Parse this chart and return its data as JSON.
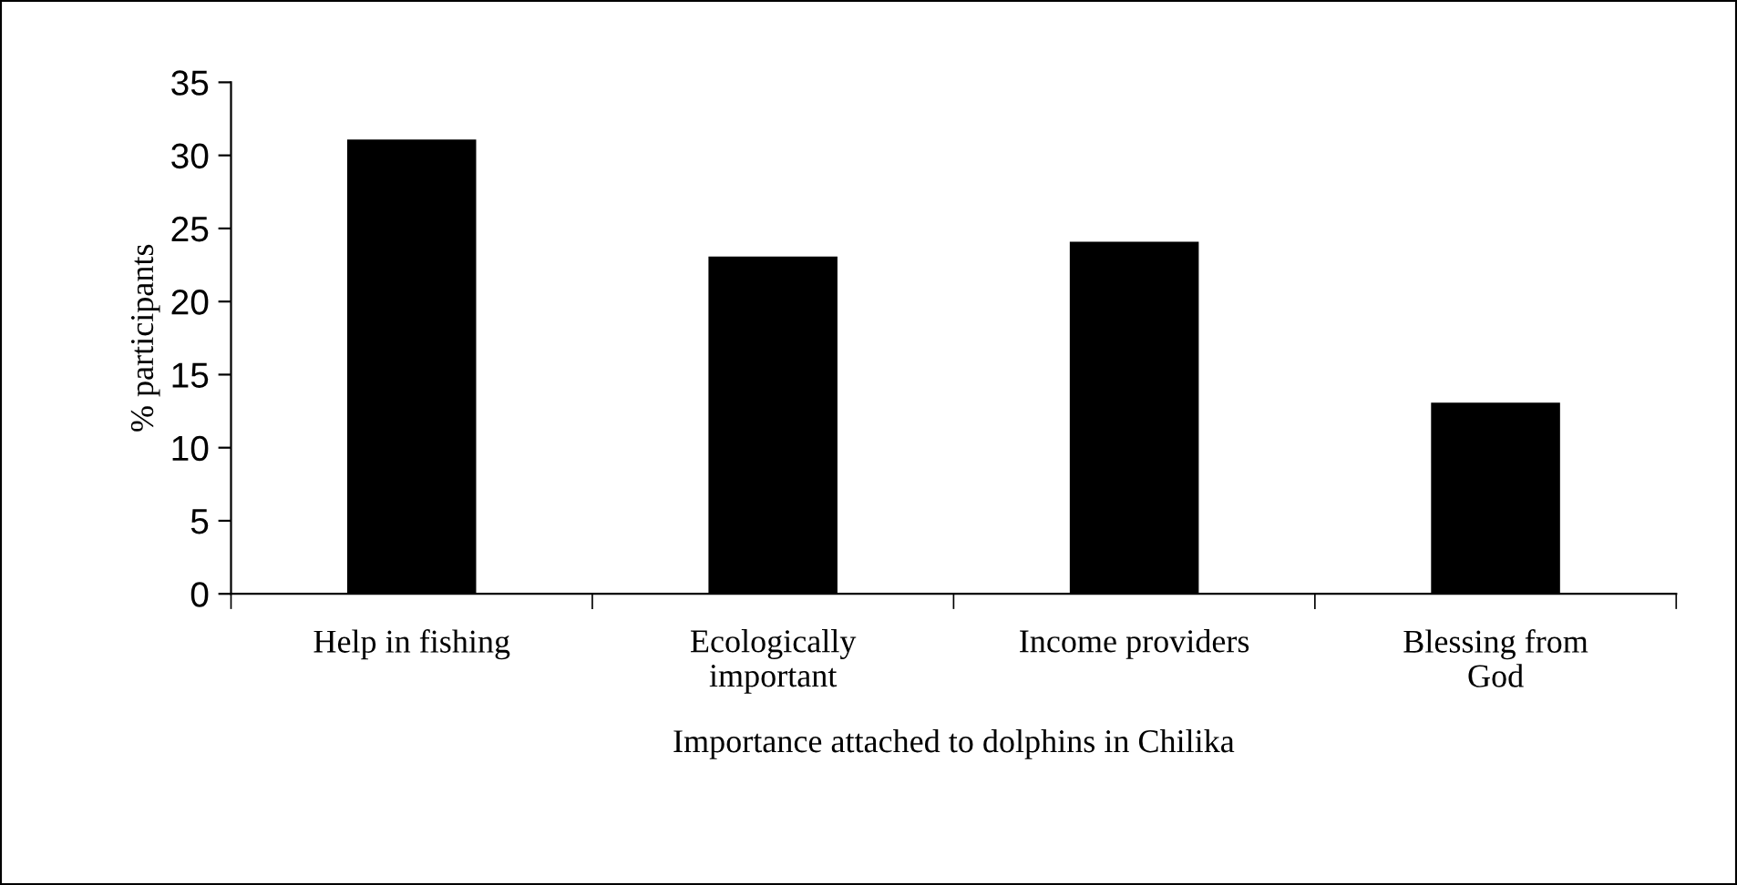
{
  "chart_data": {
    "type": "bar",
    "categories": [
      "Help in fishing",
      "Ecologically\nimportant",
      "Income providers",
      "Blessing from\nGod"
    ],
    "values": [
      31,
      23,
      24,
      13
    ],
    "color": "#000000",
    "xlabel": "Importance attached to dolphins in Chilika",
    "ylabel": "% participants",
    "ylim": [
      0,
      35
    ],
    "yticks": [
      0,
      5,
      10,
      15,
      20,
      25,
      30,
      35
    ],
    "grid": false,
    "legend": false
  }
}
